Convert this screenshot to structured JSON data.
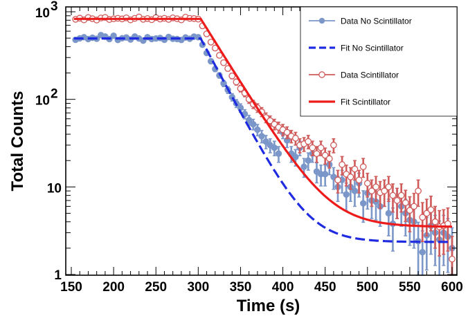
{
  "chart_data": {
    "type": "scatter",
    "xlabel": "Time (s)",
    "ylabel": "Total Counts",
    "xlim": [
      150,
      605
    ],
    "ylim": [
      1,
      1100
    ],
    "y_scale": "log",
    "grid": false,
    "legend_position": "top-right",
    "x_ticks": [
      {
        "value": 150,
        "label": "150"
      },
      {
        "value": 200,
        "label": "200"
      },
      {
        "value": 250,
        "label": "250"
      },
      {
        "value": 300,
        "label": "300"
      },
      {
        "value": 350,
        "label": "350"
      },
      {
        "value": 400,
        "label": "400"
      },
      {
        "value": 450,
        "label": "450"
      },
      {
        "value": 500,
        "label": "500"
      },
      {
        "value": 550,
        "label": "550"
      },
      {
        "value": 600,
        "label": "600"
      }
    ],
    "y_ticks": [
      {
        "value": 1,
        "label": "1",
        "sup": ""
      },
      {
        "value": 10,
        "label": "10",
        "sup": ""
      },
      {
        "value": 100,
        "label": "10",
        "sup": "2"
      },
      {
        "value": 1000,
        "label": "10",
        "sup": "3"
      }
    ],
    "series": [
      {
        "name": "Data No Scintillator",
        "kind": "data-filled",
        "color": "#7b96c8",
        "x": [
          155,
          160,
          165,
          170,
          175,
          180,
          185,
          190,
          195,
          200,
          205,
          210,
          215,
          220,
          225,
          230,
          235,
          240,
          245,
          250,
          255,
          260,
          265,
          270,
          275,
          280,
          285,
          290,
          295,
          300,
          305,
          310,
          315,
          320,
          325,
          330,
          335,
          340,
          345,
          350,
          355,
          360,
          365,
          370,
          375,
          380,
          385,
          390,
          395,
          400,
          405,
          410,
          415,
          420,
          425,
          430,
          435,
          440,
          445,
          450,
          455,
          460,
          465,
          470,
          475,
          480,
          485,
          490,
          495,
          500,
          505,
          510,
          515,
          520,
          525,
          530,
          535,
          540,
          545,
          550,
          555,
          560,
          565,
          570,
          575,
          580,
          585,
          590,
          595,
          600
        ],
        "y": [
          478,
          497,
          512,
          488,
          505,
          492,
          541,
          521,
          488,
          532,
          476,
          498,
          508,
          483,
          521,
          495,
          468,
          512,
          488,
          495,
          502,
          478,
          515,
          492,
          488,
          476,
          508,
          492,
          520,
          512,
          420,
          338,
          272,
          222,
          188,
          152,
          128,
          106,
          90,
          80,
          68,
          58,
          52,
          45,
          38,
          33,
          30,
          28,
          24,
          42,
          34,
          24,
          22,
          28,
          17,
          20,
          24,
          15,
          14,
          14,
          18,
          13,
          10,
          12,
          8.2,
          10,
          9,
          11,
          6.5,
          8.5,
          7,
          6.8,
          6,
          9,
          5,
          3.8,
          7,
          6,
          5,
          4.2,
          4,
          2.4,
          1.8,
          2.8,
          3.6,
          3,
          2.5,
          3,
          2.7,
          2
        ]
      },
      {
        "name": "Fit No Scintillator",
        "kind": "fit-dashed",
        "color": "#1f2be0",
        "plateau": 496,
        "break_x": 303,
        "decay_tau": 24,
        "decay_amp": 490,
        "background": 2.35
      },
      {
        "name": "Data Scintillator",
        "kind": "data-open",
        "color": "#d05a5a",
        "x": [
          155,
          160,
          165,
          170,
          175,
          180,
          185,
          190,
          195,
          200,
          205,
          210,
          215,
          220,
          225,
          230,
          235,
          240,
          245,
          250,
          255,
          260,
          265,
          270,
          275,
          280,
          285,
          290,
          295,
          300,
          305,
          310,
          315,
          320,
          325,
          330,
          335,
          340,
          345,
          350,
          355,
          360,
          365,
          370,
          375,
          380,
          385,
          390,
          395,
          400,
          405,
          410,
          415,
          420,
          425,
          430,
          435,
          440,
          445,
          450,
          455,
          460,
          465,
          470,
          475,
          480,
          485,
          490,
          495,
          500,
          505,
          510,
          515,
          520,
          525,
          530,
          535,
          540,
          545,
          550,
          555,
          560,
          565,
          570,
          575,
          580,
          585,
          590,
          595,
          600
        ],
        "y": [
          820,
          845,
          808,
          860,
          832,
          805,
          848,
          862,
          815,
          830,
          842,
          828,
          852,
          808,
          840,
          872,
          820,
          836,
          812,
          858,
          826,
          842,
          818,
          852,
          832,
          808,
          868,
          840,
          836,
          824,
          690,
          560,
          450,
          385,
          318,
          262,
          225,
          185,
          158,
          133,
          118,
          100,
          88,
          80,
          72,
          62,
          57,
          52,
          48,
          45,
          42,
          38,
          36,
          30,
          31,
          33,
          28,
          24,
          28,
          23,
          21,
          30,
          12,
          18,
          14,
          13,
          16,
          12,
          17,
          11,
          9,
          10,
          8.6,
          9,
          10,
          8,
          7,
          8,
          6.6,
          5.4,
          6,
          9,
          4.5,
          5,
          5.5,
          4,
          3.5,
          3.6,
          3.8,
          1.5
        ]
      },
      {
        "name": "Fit Scintillator",
        "kind": "fit-solid",
        "color": "#ee1b1b",
        "plateau": 830,
        "break_x": 303,
        "decay_tau": 28,
        "decay_amp": 826,
        "background": 3.5
      }
    ]
  }
}
